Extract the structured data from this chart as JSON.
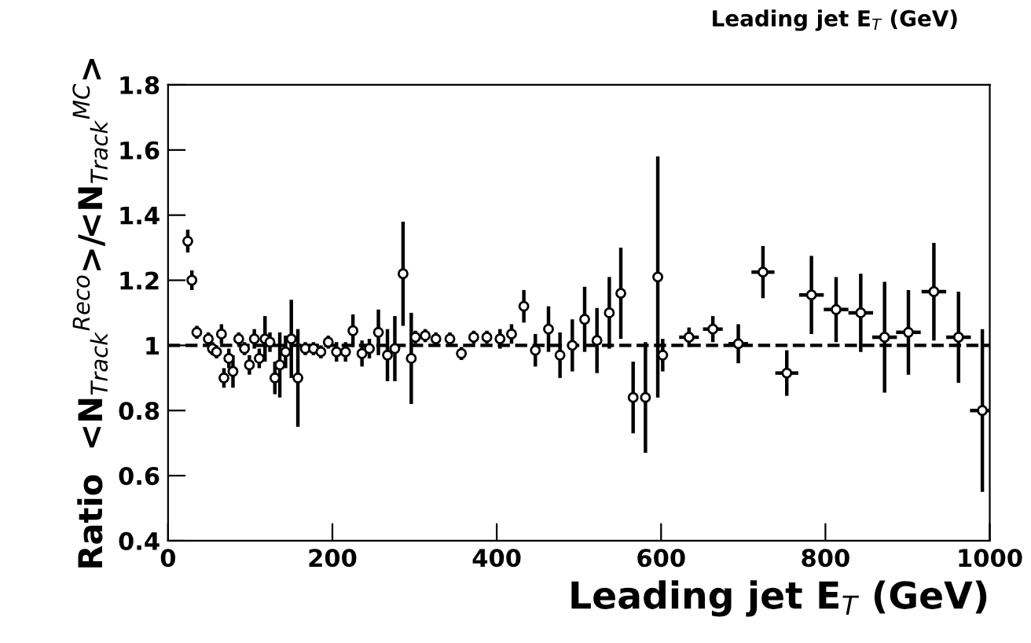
{
  "chart_data": {
    "type": "scatter",
    "xlabel": "Leading jet E$_{T}$ (GeV)",
    "ylabel": "Ratio  <N$_{Track}$$^{Reco}$>/<N$_{Track}$$^{MC}$>",
    "annotations": [
      "Leading jet E$_{T}$ (GeV)"
    ],
    "xlim": [
      0,
      1000
    ],
    "xticks": [
      0,
      200,
      400,
      600,
      800,
      1000
    ],
    "ylim": [
      0.4,
      1.8
    ],
    "yticks": [
      0.4,
      0.6,
      0.8,
      {
        "value": 1.0,
        "label": "1"
      },
      1.2,
      1.4,
      1.6,
      1.8
    ],
    "marker": "circle",
    "grid": false,
    "legend": false,
    "ref_lines": [
      {
        "axis": "y",
        "value": 1,
        "line_style": "dashed",
        "color": "#000000"
      }
    ],
    "series": [
      {
        "color": "#000000",
        "x": [
          24,
          29,
          35,
          49,
          54,
          59,
          65,
          68,
          74,
          79,
          86,
          93,
          99,
          105,
          111,
          118,
          124,
          130,
          136,
          143,
          150,
          158
        ],
        "values": [
          1.32,
          1.2,
          1.04,
          1.02,
          0.99,
          0.98,
          1.035,
          0.9,
          0.96,
          0.92,
          1.02,
          0.99,
          0.94,
          1.02,
          0.96,
          1.02,
          1.01,
          0.9,
          0.94,
          0.98,
          1.02,
          0.9
        ],
        "errors": [
          0.035,
          0.03,
          0.02,
          0.02,
          0.02,
          0.02,
          0.03,
          0.03,
          0.03,
          0.05,
          0.02,
          0.02,
          0.03,
          0.03,
          0.03,
          0.07,
          0.03,
          0.05,
          0.1,
          0.05,
          0.12,
          0.15
        ]
      },
      {
        "color": "#000000",
        "x": [
          167,
          177,
          186,
          195,
          205,
          216,
          225,
          236,
          245,
          256,
          267,
          276,
          286,
          296,
          301,
          313,
          326,
          343,
          357,
          372,
          388,
          404,
          418,
          433,
          447,
          463,
          477,
          492,
          507,
          522,
          537,
          551,
          566,
          581,
          596
        ],
        "values": [
          0.99,
          0.99,
          0.98,
          1.01,
          0.98,
          0.98,
          1.045,
          0.975,
          0.99,
          1.04,
          0.97,
          0.99,
          1.22,
          0.96,
          1.025,
          1.03,
          1.02,
          1.02,
          0.975,
          1.025,
          1.025,
          1.02,
          1.035,
          1.12,
          0.985,
          1.05,
          0.97,
          1.0,
          1.08,
          1.015,
          1.1,
          1.16,
          0.84,
          0.84,
          1.21
        ],
        "errors": [
          0.02,
          0.02,
          0.02,
          0.02,
          0.03,
          0.03,
          0.05,
          0.04,
          0.03,
          0.07,
          0.08,
          0.1,
          0.16,
          0.14,
          0.02,
          0.02,
          0.02,
          0.02,
          0.02,
          0.02,
          0.02,
          0.03,
          0.03,
          0.05,
          0.05,
          0.07,
          0.07,
          0.08,
          0.1,
          0.1,
          0.11,
          0.14,
          0.11,
          0.17,
          0.37
        ]
      },
      {
        "color": "#000000",
        "x": [
          602,
          634,
          663,
          694,
          724,
          753,
          783,
          813,
          843,
          872,
          901,
          932,
          962,
          991
        ],
        "values": [
          0.97,
          1.025,
          1.05,
          1.005,
          1.225,
          0.915,
          1.155,
          1.11,
          1.1,
          1.025,
          1.04,
          1.165,
          1.025,
          0.8
        ],
        "errors": [
          0.05,
          0.03,
          0.04,
          0.06,
          0.08,
          0.07,
          0.12,
          0.1,
          0.12,
          0.17,
          0.13,
          0.15,
          0.14,
          0.25
        ],
        "xerrors": [
          6,
          12,
          12,
          12,
          14,
          14,
          15,
          15,
          15,
          15,
          15,
          15,
          15,
          15
        ]
      }
    ]
  }
}
